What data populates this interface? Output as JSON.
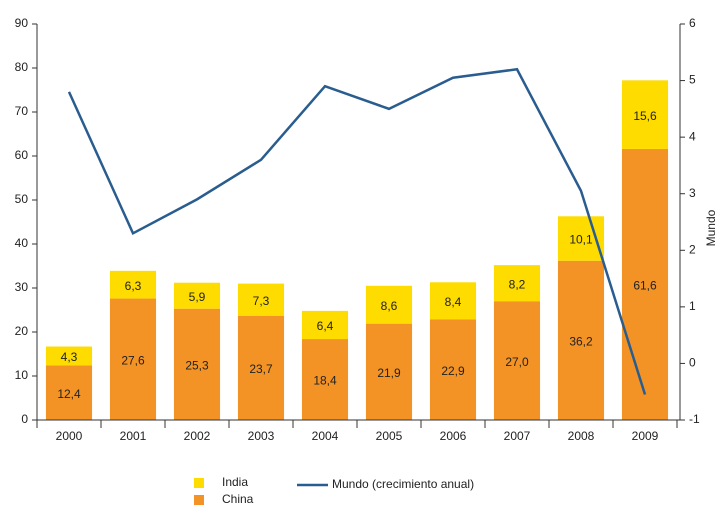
{
  "chart_data": {
    "type": "bar",
    "categories": [
      "2000",
      "2001",
      "2002",
      "2003",
      "2004",
      "2005",
      "2006",
      "2007",
      "2008",
      "2009"
    ],
    "series": [
      {
        "name": "China",
        "color": "#f39325",
        "values": [
          12.4,
          27.6,
          25.3,
          23.7,
          18.4,
          21.9,
          22.9,
          27.0,
          36.2,
          61.6
        ],
        "value_labels": [
          "12,4",
          "27,6",
          "25,3",
          "23,7",
          "18,4",
          "21,9",
          "22,9",
          "27,0",
          "36,2",
          "61,6"
        ]
      },
      {
        "name": "India",
        "color": "#fedc00",
        "values": [
          4.3,
          6.3,
          5.9,
          7.3,
          6.4,
          8.6,
          8.4,
          8.2,
          10.1,
          15.6
        ],
        "value_labels": [
          "4,3",
          "6,3",
          "5,9",
          "7,3",
          "6,4",
          "8,6",
          "8,4",
          "8,2",
          "10,1",
          "15,6"
        ]
      },
      {
        "name": "Mundo (crecimiento anual)",
        "type": "line",
        "axis": "y2",
        "color": "#2a5d8f",
        "values": [
          4.8,
          2.3,
          2.9,
          3.6,
          4.9,
          4.5,
          5.05,
          5.2,
          3.05,
          -0.55
        ]
      }
    ],
    "stacked": true,
    "ylim": [
      0,
      90
    ],
    "yticks": [
      0,
      10,
      20,
      30,
      40,
      50,
      60,
      70,
      80,
      90
    ],
    "y2lim": [
      -1,
      6
    ],
    "y2ticks": [
      -1,
      0,
      1,
      2,
      3,
      4,
      5,
      6
    ],
    "y2label": "Mundo"
  }
}
